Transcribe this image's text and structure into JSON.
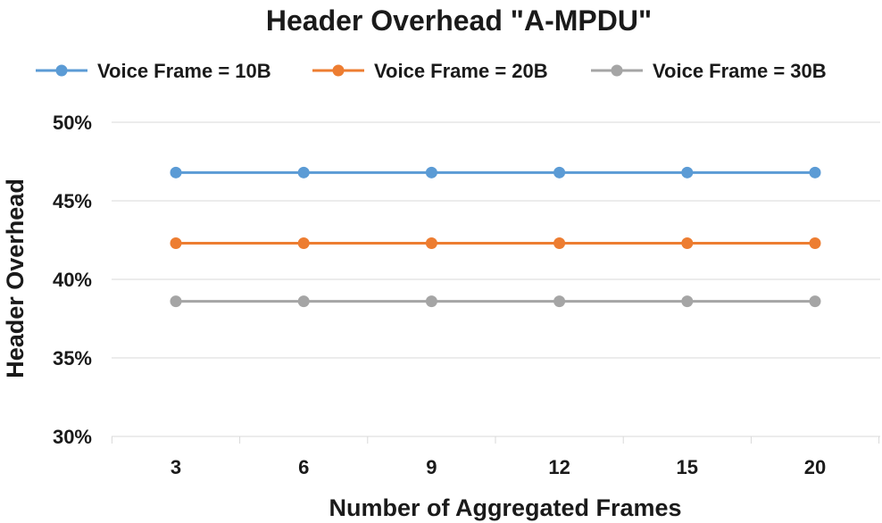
{
  "chart_data": {
    "type": "line",
    "title": "Header Overhead \"A-MPDU\"",
    "xlabel": "Number of Aggregated Frames",
    "ylabel": "Header Overhead",
    "categories": [
      "3",
      "6",
      "9",
      "12",
      "15",
      "20"
    ],
    "ylim": [
      0.3,
      0.5
    ],
    "yticks": [
      0.3,
      0.35,
      0.4,
      0.45,
      0.5
    ],
    "ytick_labels": [
      "30%",
      "35%",
      "40%",
      "45%",
      "50%"
    ],
    "grid": true,
    "legend": "top",
    "series": [
      {
        "name": "Voice Frame = 10B",
        "color": "#5b9bd5",
        "values": [
          0.468,
          0.468,
          0.468,
          0.468,
          0.468,
          0.468
        ]
      },
      {
        "name": "Voice Frame = 20B",
        "color": "#ed7d31",
        "values": [
          0.423,
          0.423,
          0.423,
          0.423,
          0.423,
          0.423
        ]
      },
      {
        "name": "Voice Frame = 30B",
        "color": "#a5a5a5",
        "values": [
          0.386,
          0.386,
          0.386,
          0.386,
          0.386,
          0.386
        ]
      }
    ]
  }
}
